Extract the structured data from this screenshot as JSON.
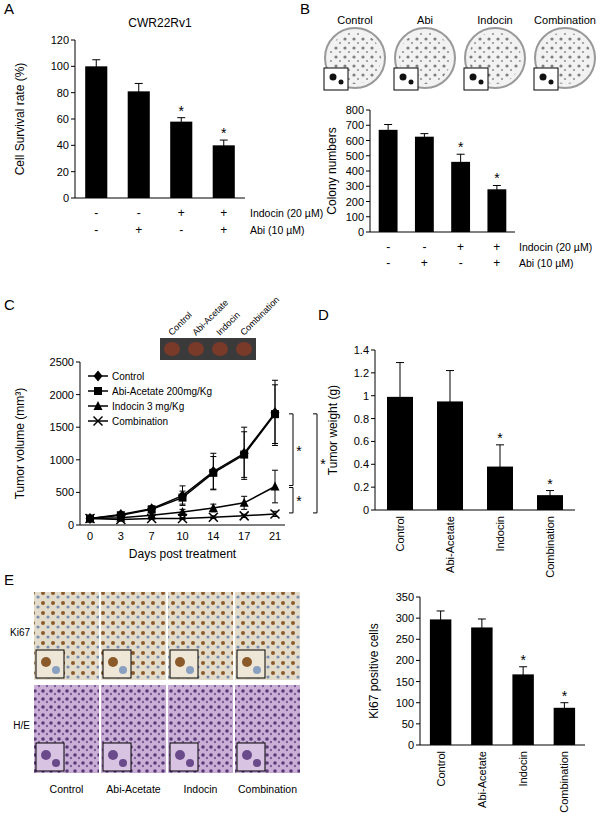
{
  "chart_data": [
    {
      "panel": "A",
      "type": "bar",
      "title": "CWR22Rv1",
      "ylabel": "Cell Survival rate (%)",
      "values": [
        100,
        81,
        58,
        40
      ],
      "errors": [
        5,
        6,
        3,
        4
      ],
      "significance": [
        null,
        null,
        "*",
        "*"
      ],
      "ylim": [
        0,
        120
      ],
      "yticks": [
        0,
        20,
        40,
        60,
        80,
        100,
        120
      ],
      "color": "#000000",
      "treatments": [
        {
          "label": "Indocin (20 µM)",
          "values": [
            "-",
            "-",
            "+",
            "+"
          ]
        },
        {
          "label": "Abi (10 µM)",
          "values": [
            "-",
            "+",
            "-",
            "+"
          ]
        }
      ]
    },
    {
      "panel": "B",
      "type": "bar",
      "ylabel": "Colony numbers",
      "image_labels": [
        "Control",
        "Abi",
        "Indocin",
        "Combination"
      ],
      "values": [
        670,
        625,
        460,
        280
      ],
      "errors": [
        35,
        20,
        50,
        25
      ],
      "significance": [
        null,
        null,
        "*",
        "*"
      ],
      "ylim": [
        0,
        800
      ],
      "yticks": [
        0,
        100,
        200,
        300,
        400,
        500,
        600,
        700,
        800
      ],
      "color": "#000000",
      "treatments": [
        {
          "label": "Indocin (20 µM)",
          "values": [
            "-",
            "-",
            "+",
            "+"
          ]
        },
        {
          "label": "Abi (10 µM)",
          "values": [
            "-",
            "+",
            "-",
            "+"
          ]
        }
      ]
    },
    {
      "panel": "C",
      "type": "line",
      "xlabel": "Days post treatment",
      "ylabel": "Tumor volume (mm³)",
      "image_labels": [
        "Control",
        "Abi-Acetate",
        "Indocin",
        "Combination"
      ],
      "categories": [
        "0",
        "3",
        "7",
        "10",
        "14",
        "17",
        "21"
      ],
      "series": [
        {
          "name": "Control",
          "color": "#000000",
          "marker": "diamond",
          "line_style": "solid",
          "values": [
            100,
            160,
            250,
            450,
            820,
            1100,
            1720
          ],
          "errors": [
            15,
            30,
            40,
            150,
            280,
            400,
            500
          ]
        },
        {
          "name": "Abi-Acetate 200mg/Kg",
          "color": "#000000",
          "marker": "square",
          "line_style": "solid",
          "values": [
            100,
            150,
            240,
            420,
            800,
            1080,
            1700
          ],
          "errors": [
            15,
            25,
            35,
            100,
            250,
            350,
            450
          ]
        },
        {
          "name": "Indocin 3 mg/Kg",
          "color": "#000000",
          "marker": "triangle",
          "line_style": "solid",
          "values": [
            100,
            110,
            150,
            200,
            260,
            340,
            590
          ],
          "errors": [
            10,
            20,
            30,
            40,
            60,
            100,
            250
          ]
        },
        {
          "name": "Combination",
          "color": "#000000",
          "marker": "x",
          "line_style": "solid",
          "values": [
            100,
            85,
            100,
            100,
            120,
            140,
            170
          ],
          "errors": [
            10,
            10,
            15,
            15,
            20,
            25,
            40
          ]
        }
      ],
      "comparisons": [
        {
          "series": [
            "Control",
            "Indocin 3 mg/Kg"
          ],
          "text": "*"
        },
        {
          "series": [
            "Indocin 3 mg/Kg",
            "Combination"
          ],
          "text": "*"
        },
        {
          "series": [
            "Control",
            "Combination"
          ],
          "text": "*"
        }
      ],
      "ylim": [
        0,
        2500
      ],
      "yticks": [
        0,
        500,
        1000,
        1500,
        2000,
        2500
      ],
      "legend": "upper left"
    },
    {
      "panel": "D",
      "type": "bar",
      "ylabel": "Tumor weight (g)",
      "categories": [
        "Control",
        "Abi-Acetate",
        "Indocin",
        "Combination"
      ],
      "values": [
        0.99,
        0.95,
        0.38,
        0.13
      ],
      "errors": [
        0.3,
        0.27,
        0.19,
        0.04
      ],
      "significance": [
        null,
        null,
        "*",
        "*"
      ],
      "ylim": [
        0,
        1.4
      ],
      "yticks": [
        0,
        0.2,
        0.4,
        0.6,
        0.8,
        1,
        1.2,
        1.4
      ],
      "color": "#000000"
    },
    {
      "panel": "E",
      "type": "bar",
      "ylabel": "Ki67 positive cells",
      "image_rows": [
        "Ki67",
        "H/E"
      ],
      "image_labels": [
        "Control",
        "Abi-Acetate",
        "Indocin",
        "Combination"
      ],
      "categories": [
        "Control",
        "Abi-Acetate",
        "Indocin",
        "Combination"
      ],
      "values": [
        297,
        278,
        167,
        88
      ],
      "errors": [
        20,
        20,
        18,
        12
      ],
      "significance": [
        null,
        null,
        "*",
        "*"
      ],
      "ylim": [
        0,
        350
      ],
      "yticks": [
        0,
        50,
        100,
        150,
        200,
        250,
        300,
        350
      ],
      "color": "#000000"
    }
  ]
}
